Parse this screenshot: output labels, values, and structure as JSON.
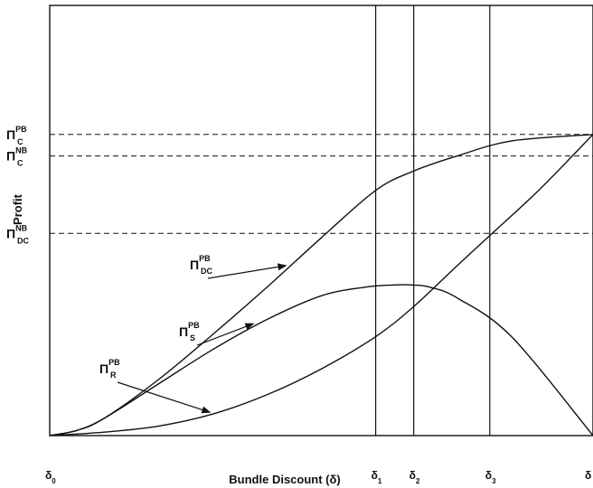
{
  "chart_data": {
    "type": "line",
    "title": "",
    "xlabel": "Bundle Discount (δ)",
    "ylabel": "Profit",
    "xlim": [
      0,
      100
    ],
    "ylim": [
      0,
      100
    ],
    "grid": false,
    "x_ticks": [
      {
        "main": "δ",
        "sub": "0",
        "x": 0
      },
      {
        "main": "δ",
        "sub": "1",
        "x": 60
      },
      {
        "main": "δ",
        "sub": "2",
        "x": 67
      },
      {
        "main": "δ",
        "sub": "3",
        "x": 81
      },
      {
        "main": "δ",
        "sub": "",
        "x": 100
      }
    ],
    "vlines": [
      60,
      67,
      81
    ],
    "hlines": [
      {
        "main": "Π",
        "sup": "PB",
        "sub": "C",
        "y": 70
      },
      {
        "main": "Π",
        "sup": "NB",
        "sub": "C",
        "y": 65
      },
      {
        "main": "Π",
        "sup": "NB",
        "sub": "DC",
        "y": 47
      }
    ],
    "series": [
      {
        "x": [
          0,
          5,
          10,
          20,
          30,
          40,
          50,
          60,
          67,
          75,
          85,
          100
        ],
        "y": [
          0,
          1.2,
          4,
          13,
          23.5,
          34.5,
          46,
          57,
          61.5,
          65,
          68.5,
          70
        ]
      },
      {
        "x": [
          0,
          5,
          10,
          20,
          30,
          40,
          50,
          58,
          63,
          67,
          70,
          75,
          85,
          100
        ],
        "y": [
          0,
          1.2,
          4,
          12,
          20,
          27,
          32.5,
          34.5,
          35,
          35,
          34.5,
          32,
          23,
          0
        ]
      },
      {
        "x": [
          0,
          10,
          20,
          30,
          40,
          50,
          60,
          67,
          75,
          81,
          90,
          100
        ],
        "y": [
          0,
          0.8,
          2.2,
          5,
          9.5,
          15.5,
          23,
          30,
          39.5,
          46.5,
          57,
          70
        ]
      }
    ],
    "annotations": [
      {
        "main": "Π",
        "sup": "PB",
        "sub": "DC",
        "target_series": 0,
        "target_x": 44
      },
      {
        "main": "Π",
        "sup": "PB",
        "sub": "S",
        "target_series": 1,
        "target_x": 38
      },
      {
        "main": "Π",
        "sup": "PB",
        "sub": "R",
        "target_series": 2,
        "target_x": 30
      }
    ]
  }
}
